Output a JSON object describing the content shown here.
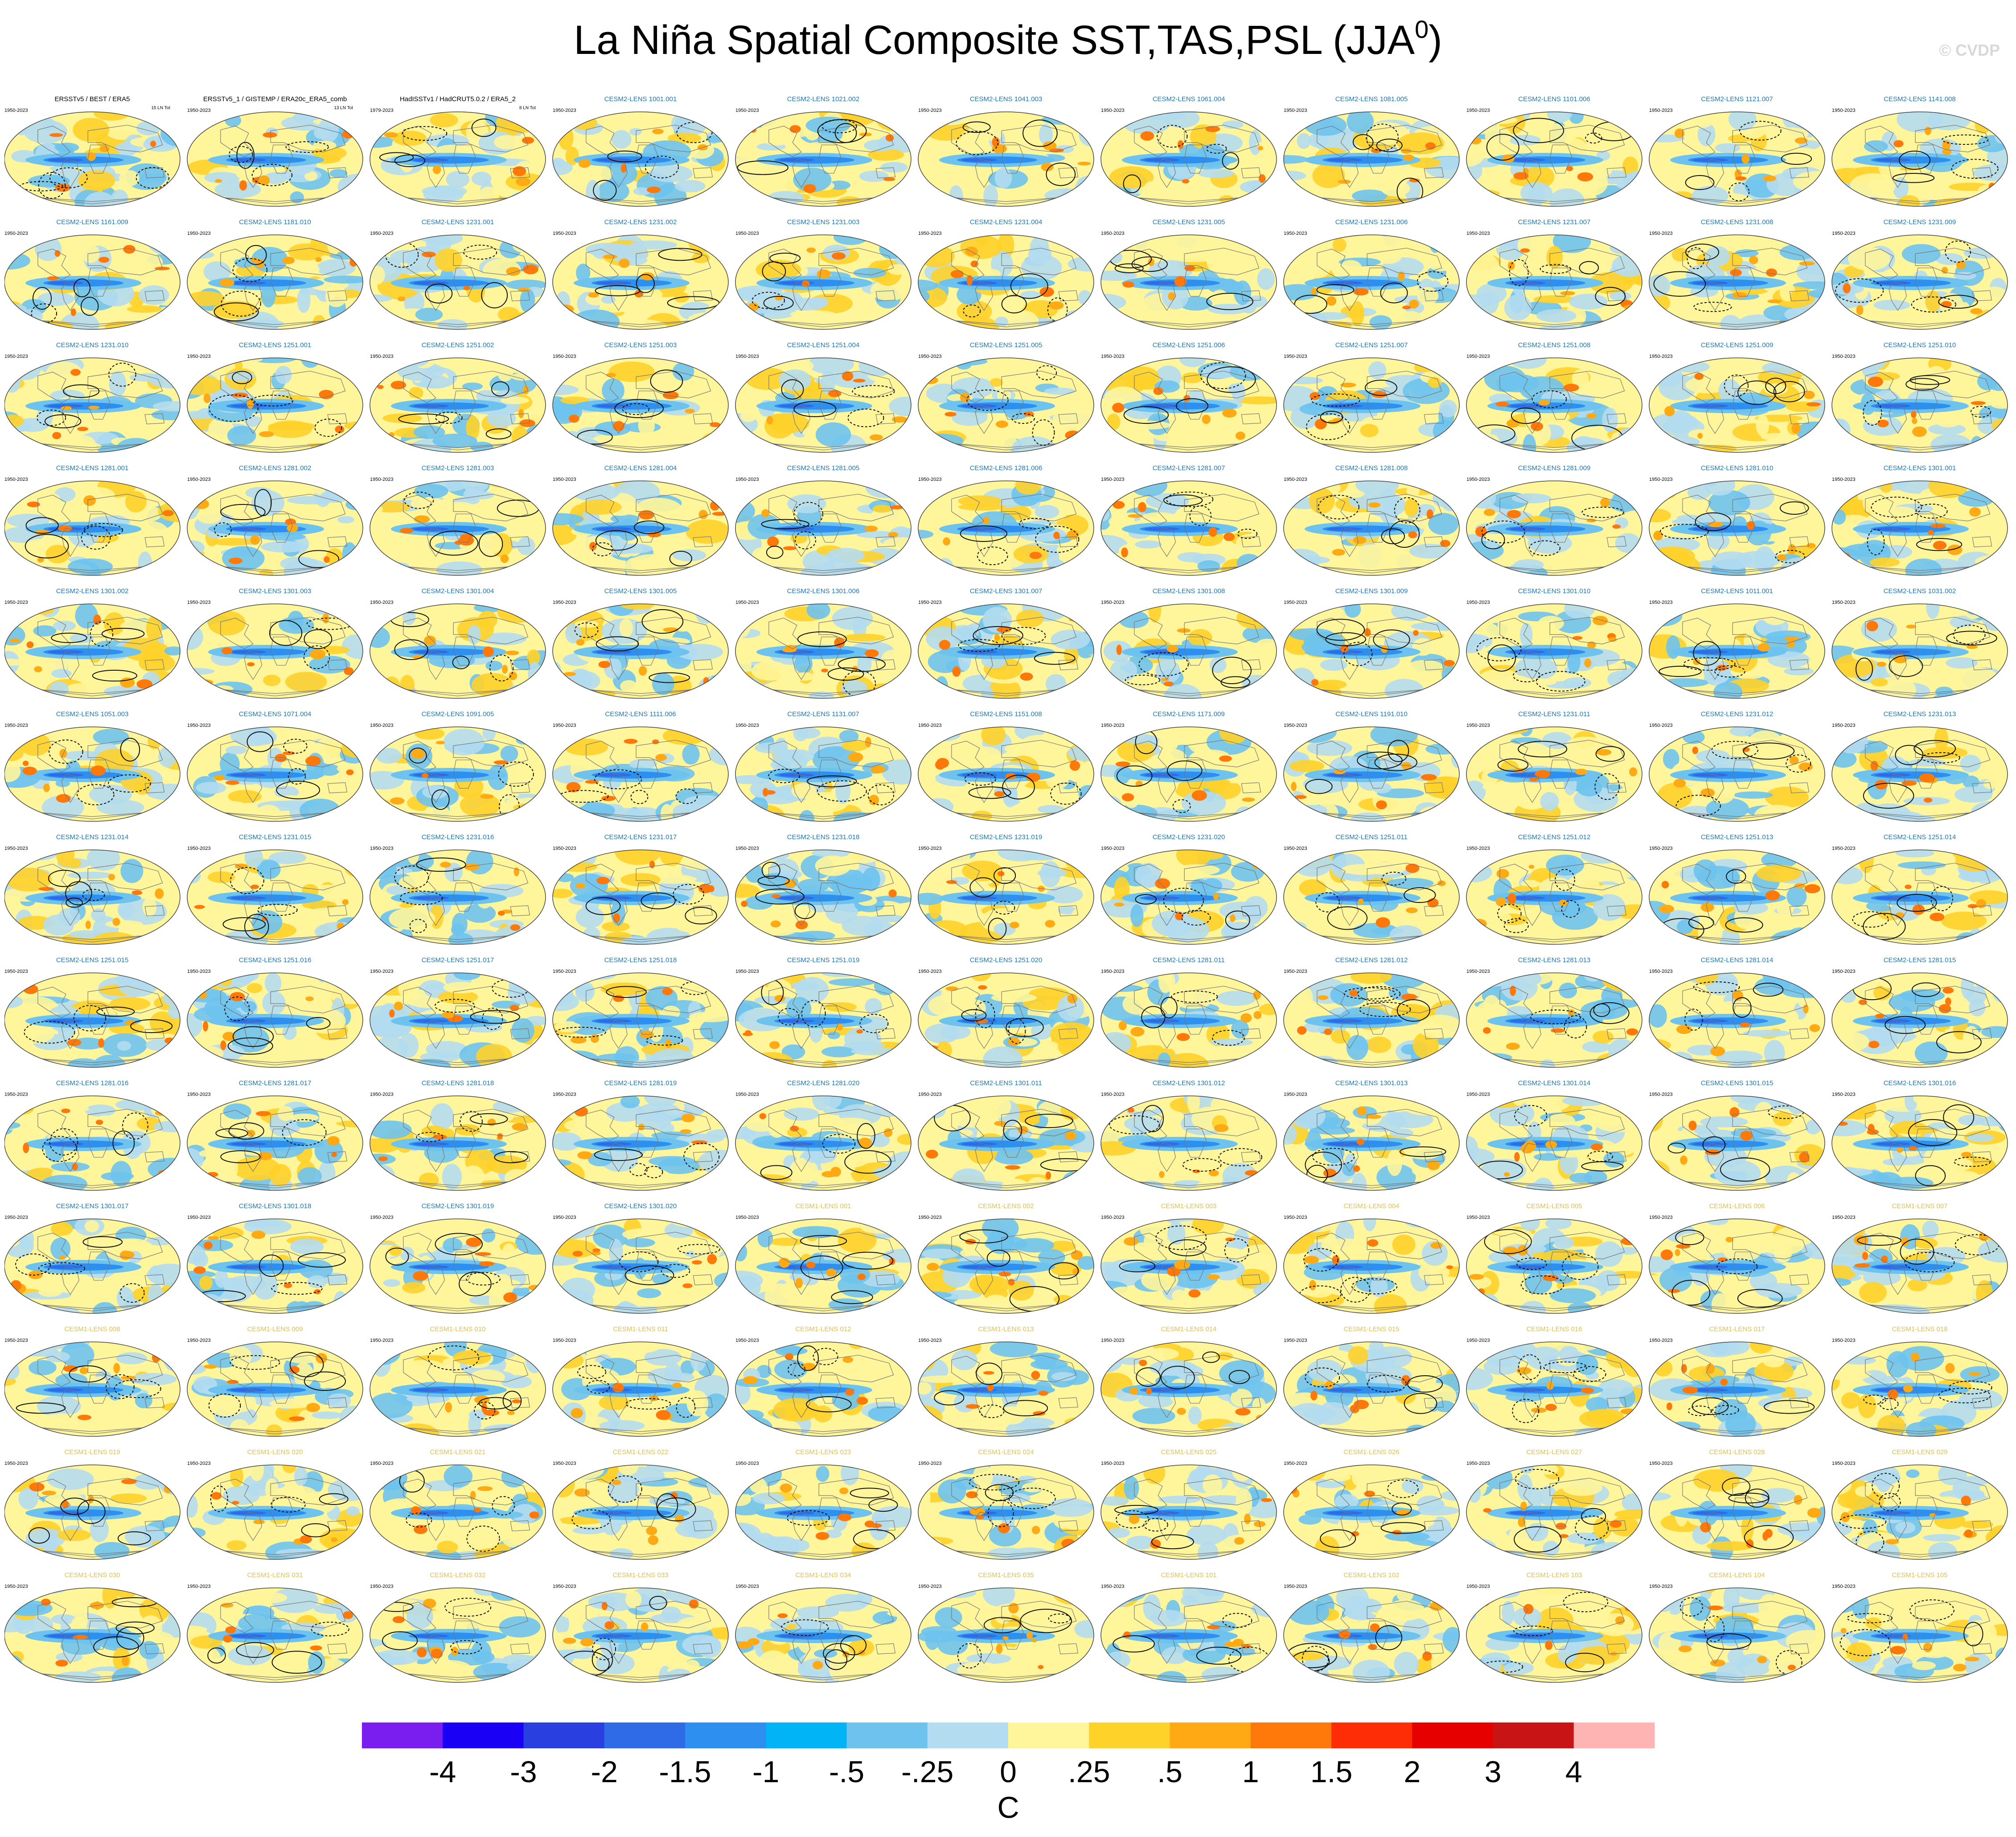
{
  "header": {
    "title_main": "La Niña Spatial Composite SST,TAS,PSL (JJA",
    "title_sup": "0",
    "title_close": ")",
    "watermark": "© CVDP"
  },
  "chart_data": {
    "type": "heatmap",
    "title": "La Niña Spatial Composite SST,TAS,PSL (JJA0)",
    "units": "C",
    "grid": {
      "rows": 13,
      "cols": 11
    },
    "obs_labels": [
      {
        "name": "ERSSTv5 / BEST / ERA5",
        "years": "1950-2023",
        "count": "15 LN Tot"
      },
      {
        "name": "ERSSTv5_1 / GISTEMP / ERA20c_ERA5_comb",
        "years": "1950-2023",
        "count": "13 LN Tot"
      },
      {
        "name": "HadISSTv1 / HadCRUT5.0.2 / ERA5_2",
        "years": "1979-2023",
        "count": "8 LN Tot"
      }
    ],
    "panels": [
      "CESM2-LENS 1001.001",
      "CESM2-LENS 1021.002",
      "CESM2-LENS 1041.003",
      "CESM2-LENS 1061.004",
      "CESM2-LENS 1081.005",
      "CESM2-LENS 1101.006",
      "CESM2-LENS 1121.007",
      "CESM2-LENS 1141.008",
      "CESM2-LENS 1161.009",
      "CESM2-LENS 1181.010",
      "CESM2-LENS 1231.001",
      "CESM2-LENS 1231.002",
      "CESM2-LENS 1231.003",
      "CESM2-LENS 1231.004",
      "CESM2-LENS 1231.005",
      "CESM2-LENS 1231.006",
      "CESM2-LENS 1231.007",
      "CESM2-LENS 1231.008",
      "CESM2-LENS 1231.009",
      "CESM2-LENS 1231.010",
      "CESM2-LENS 1251.001",
      "CESM2-LENS 1251.002",
      "CESM2-LENS 1251.003",
      "CESM2-LENS 1251.004",
      "CESM2-LENS 1251.005",
      "CESM2-LENS 1251.006",
      "CESM2-LENS 1251.007",
      "CESM2-LENS 1251.008",
      "CESM2-LENS 1251.009",
      "CESM2-LENS 1251.010",
      "CESM2-LENS 1281.001",
      "CESM2-LENS 1281.002",
      "CESM2-LENS 1281.003",
      "CESM2-LENS 1281.004",
      "CESM2-LENS 1281.005",
      "CESM2-LENS 1281.006",
      "CESM2-LENS 1281.007",
      "CESM2-LENS 1281.008",
      "CESM2-LENS 1281.009",
      "CESM2-LENS 1281.010",
      "CESM2-LENS 1301.001",
      "CESM2-LENS 1301.002",
      "CESM2-LENS 1301.003",
      "CESM2-LENS 1301.004",
      "CESM2-LENS 1301.005",
      "CESM2-LENS 1301.006",
      "CESM2-LENS 1301.007",
      "CESM2-LENS 1301.008",
      "CESM2-LENS 1301.009",
      "CESM2-LENS 1301.010",
      "CESM2-LENS 1011.001",
      "CESM2-LENS 1031.002",
      "CESM2-LENS 1051.003",
      "CESM2-LENS 1071.004",
      "CESM2-LENS 1091.005",
      "CESM2-LENS 1111.006",
      "CESM2-LENS 1131.007",
      "CESM2-LENS 1151.008",
      "CESM2-LENS 1171.009",
      "CESM2-LENS 1191.010",
      "CESM2-LENS 1231.011",
      "CESM2-LENS 1231.012",
      "CESM2-LENS 1231.013",
      "CESM2-LENS 1231.014",
      "CESM2-LENS 1231.015",
      "CESM2-LENS 1231.016",
      "CESM2-LENS 1231.017",
      "CESM2-LENS 1231.018",
      "CESM2-LENS 1231.019",
      "CESM2-LENS 1231.020",
      "CESM2-LENS 1251.011",
      "CESM2-LENS 1251.012",
      "CESM2-LENS 1251.013",
      "CESM2-LENS 1251.014",
      "CESM2-LENS 1251.015",
      "CESM2-LENS 1251.016",
      "CESM2-LENS 1251.017",
      "CESM2-LENS 1251.018",
      "CESM2-LENS 1251.019",
      "CESM2-LENS 1251.020",
      "CESM2-LENS 1281.011",
      "CESM2-LENS 1281.012",
      "CESM2-LENS 1281.013",
      "CESM2-LENS 1281.014",
      "CESM2-LENS 1281.015",
      "CESM2-LENS 1281.016",
      "CESM2-LENS 1281.017",
      "CESM2-LENS 1281.018",
      "CESM2-LENS 1281.019",
      "CESM2-LENS 1281.020",
      "CESM2-LENS 1301.011",
      "CESM2-LENS 1301.012",
      "CESM2-LENS 1301.013",
      "CESM2-LENS 1301.014",
      "CESM2-LENS 1301.015",
      "CESM2-LENS 1301.016",
      "CESM2-LENS 1301.017",
      "CESM2-LENS 1301.018",
      "CESM2-LENS 1301.019",
      "CESM2-LENS 1301.020",
      "CESM1-LENS 001",
      "CESM1-LENS 002",
      "CESM1-LENS 003",
      "CESM1-LENS 004",
      "CESM1-LENS 005",
      "CESM1-LENS 006",
      "CESM1-LENS 007",
      "CESM1-LENS 008",
      "CESM1-LENS 009",
      "CESM1-LENS 010",
      "CESM1-LENS 011",
      "CESM1-LENS 012",
      "CESM1-LENS 013",
      "CESM1-LENS 014",
      "CESM1-LENS 015",
      "CESM1-LENS 016",
      "CESM1-LENS 017",
      "CESM1-LENS 018",
      "CESM1-LENS 019",
      "CESM1-LENS 020",
      "CESM1-LENS 021",
      "CESM1-LENS 022",
      "CESM1-LENS 023",
      "CESM1-LENS 024",
      "CESM1-LENS 025",
      "CESM1-LENS 026",
      "CESM1-LENS 027",
      "CESM1-LENS 028",
      "CESM1-LENS 029",
      "CESM1-LENS 030",
      "CESM1-LENS 031",
      "CESM1-LENS 032",
      "CESM1-LENS 033",
      "CESM1-LENS 034",
      "CESM1-LENS 035",
      "CESM1-LENS 101",
      "CESM1-LENS 102",
      "CESM1-LENS 103",
      "CESM1-LENS 104",
      "CESM1-LENS 105"
    ],
    "model_years": "1950-2023",
    "ensemble_colors": {
      "CESM2-LENS": "#1f77b4",
      "CESM1-LENS": "#e0c050"
    },
    "colorbar": {
      "colors": [
        "#7a1ef0",
        "#1a00f5",
        "#2a3fe0",
        "#2f6be6",
        "#2d8ff0",
        "#00b4f5",
        "#6ec3ee",
        "#b4dcf0",
        "#fff59a",
        "#ffd22a",
        "#ffaa14",
        "#ff780a",
        "#ff2d05",
        "#e60000",
        "#c81414",
        "#ffb4b4"
      ],
      "tick_labels": [
        "-4",
        "-3",
        "-2",
        "-1.5",
        "-1",
        "-.5",
        "-.25",
        "0",
        ".25",
        ".5",
        "1",
        "1.5",
        "2",
        "3",
        "4"
      ],
      "unit_label": "C"
    }
  }
}
